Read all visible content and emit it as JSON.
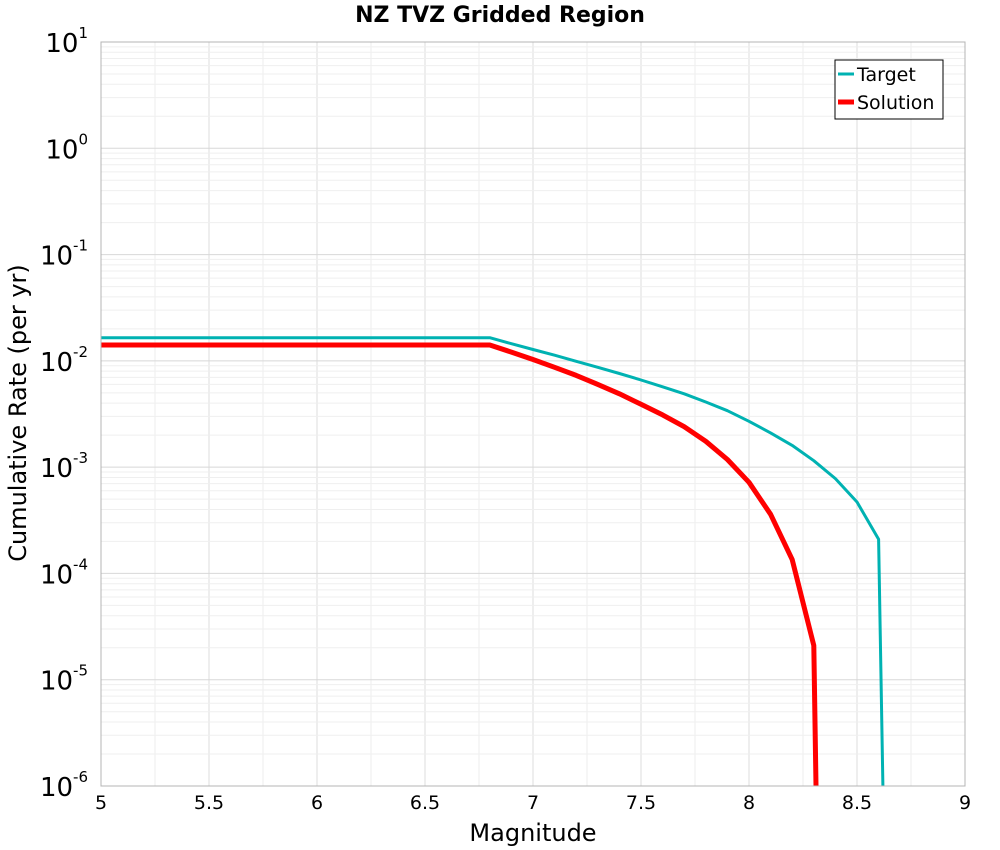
{
  "chart_data": {
    "type": "line",
    "title": "NZ TVZ Gridded Region",
    "xlabel": "Magnitude",
    "ylabel": "Cumulative Rate (per yr)",
    "xlim": [
      5,
      9
    ],
    "ylim": [
      1e-06,
      10
    ],
    "yscale": "log",
    "grid": true,
    "legend_position": "top-right",
    "x_ticks": [
      "5",
      "5.5",
      "6",
      "6.5",
      "7",
      "7.5",
      "8",
      "8.5",
      "9"
    ],
    "y_ticks": [
      {
        "base": "10",
        "exp": "1"
      },
      {
        "base": "10",
        "exp": "0"
      },
      {
        "base": "10",
        "exp": "-1"
      },
      {
        "base": "10",
        "exp": "-2"
      },
      {
        "base": "10",
        "exp": "-3"
      },
      {
        "base": "10",
        "exp": "-4"
      },
      {
        "base": "10",
        "exp": "-5"
      },
      {
        "base": "10",
        "exp": "-6"
      }
    ],
    "series": [
      {
        "name": "Target",
        "color": "#00b2b2",
        "x": [
          5.0,
          6.8,
          6.9,
          7.0,
          7.1,
          7.2,
          7.3,
          7.4,
          7.5,
          7.6,
          7.7,
          7.8,
          7.9,
          8.0,
          8.1,
          8.2,
          8.3,
          8.4,
          8.5,
          8.6,
          8.62
        ],
        "y": [
          0.0165,
          0.0165,
          0.0145,
          0.0128,
          0.0113,
          0.0099,
          0.0087,
          0.0076,
          0.0066,
          0.0057,
          0.0049,
          0.0041,
          0.0034,
          0.0027,
          0.0021,
          0.0016,
          0.00115,
          0.00078,
          0.00047,
          0.00021,
          1e-06
        ]
      },
      {
        "name": "Solution",
        "color": "#ff0000",
        "x": [
          5.0,
          6.8,
          6.9,
          7.0,
          7.1,
          7.2,
          7.3,
          7.4,
          7.5,
          7.6,
          7.7,
          7.8,
          7.9,
          8.0,
          8.1,
          8.2,
          8.3,
          8.31
        ],
        "y": [
          0.0141,
          0.0141,
          0.0121,
          0.0103,
          0.0087,
          0.0073,
          0.006,
          0.0049,
          0.0039,
          0.0031,
          0.0024,
          0.00175,
          0.00118,
          0.00072,
          0.00036,
          0.000135,
          2.1e-05,
          1e-06
        ]
      }
    ]
  }
}
